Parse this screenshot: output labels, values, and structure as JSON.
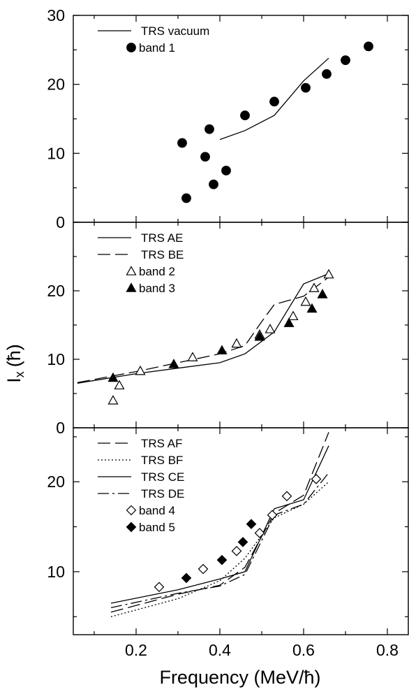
{
  "figure": {
    "ylabel_main": "I",
    "ylabel_sub": "x",
    "ylabel_unit": "(ħ)",
    "xlabel": "Frequency (MeV/ħ)"
  },
  "chart_data": [
    {
      "type": "line",
      "panel": "top",
      "xlim": [
        0.05,
        0.85
      ],
      "ylim": [
        0,
        30
      ],
      "x_ticks": [
        "0.2",
        "0.4",
        "0.6",
        "0.8"
      ],
      "y_ticks": [
        "0",
        "10",
        "20",
        "30"
      ],
      "legend_position": "top-left",
      "series": [
        {
          "name": "TRS vacuum",
          "kind": "line",
          "style": "solid",
          "x": [
            0.4,
            0.46,
            0.53,
            0.6,
            0.66
          ],
          "y": [
            12.0,
            13.3,
            15.5,
            20.5,
            23.8
          ]
        },
        {
          "name": "band 1",
          "kind": "scatter",
          "marker": "filled-circle",
          "x": [
            0.31,
            0.365,
            0.375,
            0.385,
            0.415,
            0.46,
            0.53,
            0.605,
            0.655,
            0.7,
            0.755
          ],
          "y": [
            11.5,
            9.5,
            13.5,
            5.5,
            7.5,
            15.5,
            17.5,
            19.5,
            21.5,
            23.5,
            25.5
          ]
        },
        {
          "name": "",
          "kind": "scatter",
          "marker": "filled-circle",
          "x": [
            0.32
          ],
          "y": [
            3.5
          ]
        }
      ]
    },
    {
      "type": "line",
      "panel": "middle",
      "xlim": [
        0.05,
        0.85
      ],
      "ylim": [
        0,
        30
      ],
      "x_ticks": [
        "0.2",
        "0.4",
        "0.6",
        "0.8"
      ],
      "y_ticks": [
        "0",
        "10",
        "20"
      ],
      "legend_position": "top-left",
      "series": [
        {
          "name": "TRS AE",
          "kind": "line",
          "style": "solid",
          "x": [
            0.06,
            0.2,
            0.3,
            0.4,
            0.46,
            0.53,
            0.6,
            0.66
          ],
          "y": [
            6.5,
            7.9,
            8.7,
            9.5,
            10.8,
            14.0,
            21.0,
            22.5
          ]
        },
        {
          "name": "TRS BE",
          "kind": "line",
          "style": "long-dash",
          "x": [
            0.06,
            0.2,
            0.3,
            0.4,
            0.46,
            0.5,
            0.53,
            0.6,
            0.66
          ],
          "y": [
            6.6,
            8.2,
            9.5,
            10.8,
            12.0,
            15.5,
            18.0,
            19.2,
            22.0
          ]
        },
        {
          "name": "band 2",
          "kind": "scatter",
          "marker": "open-triangle",
          "x": [
            0.145,
            0.16,
            0.21,
            0.335,
            0.44,
            0.495,
            0.52,
            0.575,
            0.605,
            0.625,
            0.66
          ],
          "y": [
            4.0,
            6.2,
            8.3,
            10.3,
            12.3,
            13.6,
            14.4,
            16.3,
            18.4,
            20.4,
            22.4
          ]
        },
        {
          "name": "band 3",
          "kind": "scatter",
          "marker": "filled-triangle",
          "x": [
            0.145,
            0.29,
            0.405,
            0.495,
            0.565,
            0.62,
            0.645
          ],
          "y": [
            7.3,
            9.3,
            11.3,
            13.3,
            15.3,
            17.4,
            19.5
          ]
        }
      ]
    },
    {
      "type": "line",
      "panel": "bottom",
      "xlim": [
        0.05,
        0.85
      ],
      "ylim": [
        3,
        26
      ],
      "x_ticks": [
        "0.2",
        "0.4",
        "0.6",
        "0.8"
      ],
      "y_ticks": [
        "10",
        "20"
      ],
      "legend_position": "top-left",
      "series": [
        {
          "name": "TRS AF",
          "kind": "line",
          "style": "long-dash",
          "x": [
            0.14,
            0.3,
            0.4,
            0.46,
            0.53,
            0.6,
            0.66
          ],
          "y": [
            5.5,
            7.5,
            8.5,
            10.5,
            16.5,
            18.5,
            25.5
          ]
        },
        {
          "name": "TRS BF",
          "kind": "line",
          "style": "dotted",
          "x": [
            0.14,
            0.3,
            0.4,
            0.46,
            0.53,
            0.6,
            0.66
          ],
          "y": [
            5.0,
            7.0,
            9.0,
            11.5,
            16.0,
            17.5,
            20.0
          ]
        },
        {
          "name": "TRS CE",
          "kind": "line",
          "style": "solid",
          "x": [
            0.14,
            0.3,
            0.4,
            0.46,
            0.53,
            0.6,
            0.66
          ],
          "y": [
            6.5,
            8.0,
            9.2,
            10.0,
            17.0,
            18.0,
            24.0
          ]
        },
        {
          "name": "TRS DE",
          "kind": "line",
          "style": "dash-dot",
          "x": [
            0.14,
            0.3,
            0.4,
            0.46,
            0.53,
            0.6,
            0.66
          ],
          "y": [
            6.0,
            7.6,
            8.4,
            9.7,
            16.3,
            17.5,
            21.0
          ]
        },
        {
          "name": "band 4",
          "kind": "scatter",
          "marker": "open-diamond",
          "x": [
            0.255,
            0.36,
            0.44,
            0.495,
            0.525,
            0.56,
            0.63
          ],
          "y": [
            8.3,
            10.3,
            12.3,
            14.3,
            16.3,
            18.4,
            20.3
          ]
        },
        {
          "name": "band 5",
          "kind": "scatter",
          "marker": "filled-diamond",
          "x": [
            0.32,
            0.405,
            0.455,
            0.475
          ],
          "y": [
            9.3,
            11.3,
            13.3,
            15.3
          ]
        }
      ]
    }
  ]
}
